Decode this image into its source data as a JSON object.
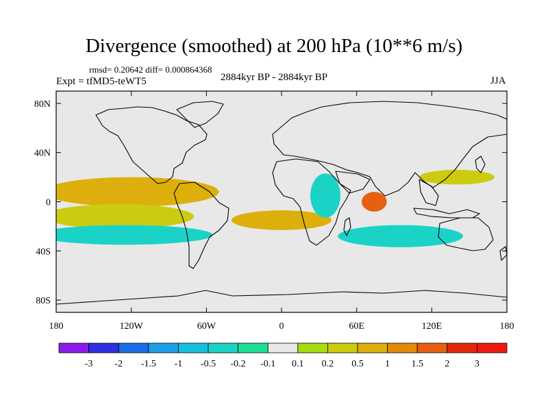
{
  "title": "Divergence (smoothed) at 200 hPa (10**6 m/s)",
  "stats": "rmsd= 0.20642 diff= 0.000864368",
  "experiment": "Expt = tfMD5-teWT5",
  "period": "2884kyr BP - 2884kyr BP",
  "season": "JJA",
  "chart_data": {
    "type": "heatmap",
    "projection": "cylindrical equidistant",
    "variable": "Divergence (smoothed) at 200 hPa",
    "units": "10**6 m/s",
    "x_ticks": [
      {
        "value": -180,
        "label": "180"
      },
      {
        "value": -120,
        "label": "120W"
      },
      {
        "value": -60,
        "label": "60W"
      },
      {
        "value": 0,
        "label": "0"
      },
      {
        "value": 60,
        "label": "60E"
      },
      {
        "value": 120,
        "label": "120E"
      },
      {
        "value": 180,
        "label": "180"
      }
    ],
    "y_ticks": [
      {
        "value": 80,
        "label": "80N"
      },
      {
        "value": 40,
        "label": "40N"
      },
      {
        "value": 0,
        "label": "0"
      },
      {
        "value": -40,
        "label": "40S"
      },
      {
        "value": -80,
        "label": "80S"
      }
    ],
    "xlim": [
      -180,
      180
    ],
    "ylim": [
      -90,
      90
    ],
    "colorbar": {
      "labels": [
        "-3",
        "-2",
        "-1.5",
        "-1",
        "-0.5",
        "-0.2",
        "-0.1",
        "0.1",
        "0.2",
        "0.5",
        "1",
        "1.5",
        "2",
        "3"
      ],
      "colors": [
        "#8c1cec",
        "#2f2fe0",
        "#1a6ee6",
        "#1e9ee6",
        "#16c0dc",
        "#1ad3c6",
        "#1ee094",
        "#e8e8e8",
        "#a6dc10",
        "#cbcc10",
        "#ddaf0c",
        "#e28a06",
        "#e66010",
        "#e22a0a",
        "#ee1a12"
      ]
    },
    "features": [
      {
        "name": "equatorial-east-pacific-divergence",
        "lon": -120,
        "lat": 8,
        "w": 70,
        "h": 12,
        "level": 10
      },
      {
        "name": "south-pacific-divergence-band",
        "lon": -130,
        "lat": -12,
        "w": 60,
        "h": 10,
        "level": 9
      },
      {
        "name": "indian-monsoon-max",
        "lon": 74,
        "lat": 0,
        "w": 10,
        "h": 8,
        "level": 12
      },
      {
        "name": "south-pacific-convergence",
        "lon": -125,
        "lat": -27,
        "w": 70,
        "h": 8,
        "level": 5
      },
      {
        "name": "south-atlantic-divergence",
        "lon": 0,
        "lat": -15,
        "w": 40,
        "h": 8,
        "level": 10
      },
      {
        "name": "south-indian-convergence",
        "lon": 95,
        "lat": -28,
        "w": 50,
        "h": 9,
        "level": 5
      },
      {
        "name": "west-pacific-divergence",
        "lon": 140,
        "lat": 20,
        "w": 30,
        "h": 6,
        "level": 9
      },
      {
        "name": "africa-convergence",
        "lon": 35,
        "lat": 5,
        "w": 12,
        "h": 18,
        "level": 5
      }
    ]
  }
}
